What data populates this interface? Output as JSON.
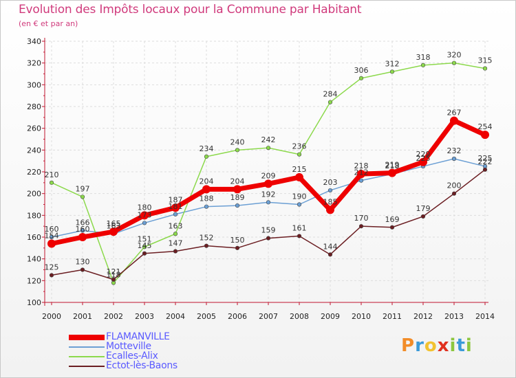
{
  "chart_data": {
    "type": "line",
    "title": "Evolution des Impôts locaux pour la Commune par Habitant",
    "subtitle": "(en € et par an)",
    "ylim": [
      100,
      340
    ],
    "yticks": [
      100,
      120,
      140,
      160,
      180,
      200,
      220,
      240,
      260,
      280,
      300,
      320,
      340
    ],
    "x": [
      "2000",
      "2001",
      "2002",
      "2003",
      "2004",
      "2005",
      "2006",
      "2007",
      "2008",
      "2009",
      "2010",
      "2011",
      "2012",
      "2013",
      "2014"
    ],
    "series": [
      {
        "name": "Motteville",
        "color": "#6b9fd4",
        "values": [
          160,
          166,
          163,
          173,
          181,
          188,
          189,
          192,
          190,
          203,
          212,
          218,
          225,
          232,
          225
        ]
      },
      {
        "name": "Ecalles-Alix",
        "color": "#8cd94c",
        "values": [
          210,
          197,
          118,
          151,
          163,
          234,
          240,
          242,
          236,
          284,
          306,
          312,
          318,
          320,
          315
        ]
      },
      {
        "name": "Ectot-lès-Baons",
        "color": "#6b1e22",
        "values": [
          125,
          130,
          121,
          145,
          147,
          152,
          150,
          159,
          161,
          144,
          170,
          169,
          179,
          200,
          222
        ]
      },
      {
        "name": "FLAMANVILLE",
        "color": "#ee0000",
        "values": [
          154,
          160,
          165,
          180,
          187,
          204,
          204,
          209,
          215,
          185,
          218,
          219,
          229,
          267,
          254
        ]
      }
    ],
    "legend": [
      "FLAMANVILLE",
      "Motteville",
      "Ecalles-Alix",
      "Ectot-lès-Baons"
    ]
  },
  "logo": {
    "text": "Proxiti"
  }
}
